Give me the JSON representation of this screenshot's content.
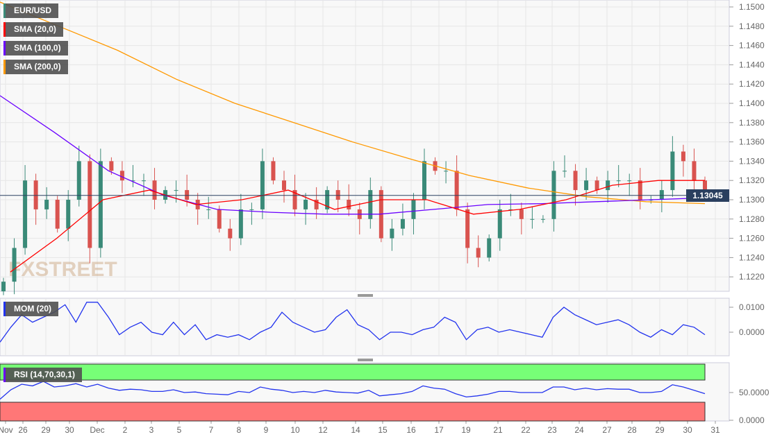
{
  "legend": {
    "symbol": "EUR/USD",
    "sma20": "SMA (20,0)",
    "sma100": "SMA (100,0)",
    "sma200": "SMA (200,0)",
    "mom": "MOM (20)",
    "rsi": "RSI (14,70,30,1)"
  },
  "colors": {
    "up": "#3a8a78",
    "down": "#d9534f",
    "sma20": "#ff0000",
    "sma100": "#6a00ff",
    "sma200": "#ff9900",
    "symbol": "#3a8a78",
    "mom": "#2233ee",
    "rsi": "#2233ee",
    "overbought": "#77ff77",
    "oversold": "#ff7777"
  },
  "watermark": "FXSTREET",
  "current_price": "1.13045",
  "chart_data": [
    {
      "type": "candlestick",
      "title": "EUR/USD",
      "ylim": [
        1.1205,
        1.1505
      ],
      "y_ticks": [
        "1.1500",
        "1.1480",
        "1.1460",
        "1.1440",
        "1.1420",
        "1.1400",
        "1.1380",
        "1.1360",
        "1.1340",
        "1.1320",
        "1.1300",
        "1.1280",
        "1.1260",
        "1.1240",
        "1.1220"
      ],
      "x_ticks": [
        "Nov",
        "26",
        "29",
        "30",
        "Dec",
        "2",
        "3",
        "5",
        "7",
        "8",
        "9",
        "10",
        "12",
        "14",
        "15",
        "16",
        "17",
        "19",
        "21",
        "22",
        "23",
        "24",
        "27",
        "28",
        "29",
        "30",
        "31"
      ],
      "closes": [
        1.1215,
        1.125,
        1.132,
        1.129,
        1.13,
        1.127,
        1.13,
        1.134,
        1.125,
        1.134,
        1.133,
        1.132,
        1.132,
        1.132,
        1.13,
        1.131,
        1.131,
        1.13,
        1.129,
        1.129,
        1.127,
        1.126,
        1.129,
        1.129,
        1.134,
        1.132,
        1.131,
        1.129,
        1.13,
        1.129,
        1.131,
        1.13,
        1.129,
        1.128,
        1.131,
        1.126,
        1.127,
        1.128,
        1.13,
        1.134,
        1.133,
        1.133,
        1.129,
        1.125,
        1.124,
        1.126,
        1.129,
        1.129,
        1.128,
        1.128,
        1.128,
        1.133,
        1.133,
        1.131,
        1.132,
        1.131,
        1.132,
        1.132,
        1.132,
        1.13,
        1.13,
        1.131,
        1.135,
        1.134,
        1.132,
        1.13045
      ],
      "series": [
        {
          "name": "SMA (20,0)",
          "values": [
            1.1225,
            1.126,
            1.13,
            1.131,
            1.1295,
            1.13,
            1.131,
            1.129,
            1.13,
            1.13,
            1.1285,
            1.129,
            1.13,
            1.1315,
            1.132,
            1.132
          ]
        },
        {
          "name": "SMA (100,0)",
          "values": [
            1.1408,
            1.137,
            1.133,
            1.1305,
            1.129,
            1.1287,
            1.1285,
            1.1285,
            1.129,
            1.1295,
            1.1296,
            1.1298,
            1.13,
            1.1302
          ]
        },
        {
          "name": "SMA (200,0)",
          "values": [
            1.1505,
            1.148,
            1.1455,
            1.1425,
            1.14,
            1.138,
            1.136,
            1.1342,
            1.1325,
            1.1312,
            1.1303,
            1.1298,
            1.1296
          ]
        }
      ]
    },
    {
      "type": "line",
      "title": "MOM (20)",
      "ylim": [
        -0.0035,
        0.012
      ],
      "y_ticks": [
        "0.0100",
        "0.0000"
      ],
      "values": [
        -0.004,
        0.002,
        0.007,
        0.004,
        0.006,
        0.008,
        0.011,
        0.004,
        0.012,
        0.012,
        0.006,
        -0.001,
        0.002,
        0.004,
        0.0,
        -0.001,
        0.004,
        -0.001,
        0.003,
        -0.003,
        -0.001,
        -0.002,
        -0.001,
        -0.003,
        0.0,
        0.002,
        0.008,
        0.004,
        0.002,
        0.0,
        0.001,
        0.006,
        0.009,
        0.003,
        0.001,
        -0.003,
        0.0,
        0.0,
        -0.001,
        0.001,
        0.002,
        0.006,
        0.004,
        -0.003,
        0.001,
        0.002,
        0.0,
        0.001,
        0.0,
        -0.001,
        -0.002,
        0.006,
        0.01,
        0.007,
        0.005,
        0.003,
        0.004,
        0.005,
        0.003,
        0.0,
        -0.002,
        0.001,
        -0.001,
        0.003,
        0.002,
        -0.001
      ]
    },
    {
      "type": "line",
      "title": "RSI (14,70,30,1)",
      "ylim": [
        0,
        100
      ],
      "y_ticks": [
        "50.0000",
        "0.0000"
      ],
      "levels": [
        70,
        30
      ],
      "values": [
        38,
        55,
        65,
        62,
        70,
        60,
        62,
        66,
        60,
        65,
        58,
        54,
        56,
        55,
        52,
        52,
        55,
        50,
        51,
        48,
        47,
        46,
        52,
        50,
        60,
        56,
        54,
        50,
        52,
        50,
        54,
        51,
        50,
        49,
        54,
        44,
        46,
        48,
        52,
        62,
        58,
        56,
        48,
        42,
        44,
        47,
        52,
        52,
        50,
        50,
        50,
        60,
        60,
        55,
        58,
        55,
        57,
        56,
        56,
        50,
        50,
        52,
        64,
        60,
        54,
        48
      ]
    }
  ]
}
